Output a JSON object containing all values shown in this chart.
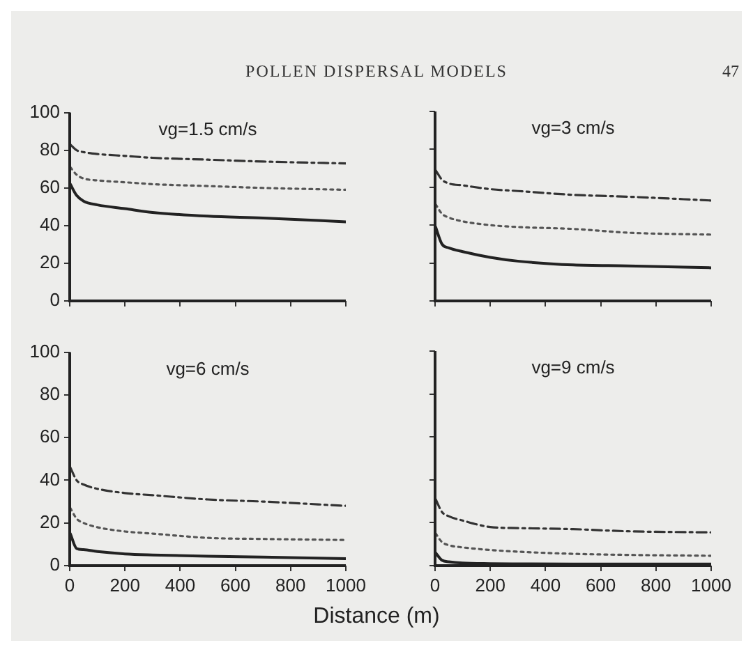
{
  "chart_data": [
    {
      "type": "line",
      "title": "vg=1.5 cm/s",
      "annotations": [
        "POLLEN DISPERSAL MODELS",
        "47"
      ],
      "x": [
        2,
        25,
        50,
        100,
        200,
        300,
        500,
        700,
        1000
      ],
      "xlim": [
        0,
        1000
      ],
      "ylim": [
        0,
        100
      ],
      "xticks": [
        0,
        200,
        400,
        600,
        800,
        1000
      ],
      "yticks": [
        0,
        20,
        40,
        60,
        80,
        100
      ],
      "tick_labels": "y",
      "series": [
        {
          "color": "#333333",
          "line_style": "dashed",
          "values": [
            83,
            80,
            79,
            78,
            77,
            76,
            75,
            74,
            73
          ]
        },
        {
          "color": "#555555",
          "line_style": "dotted",
          "values": [
            71,
            67,
            65,
            64,
            63,
            62,
            61,
            60,
            59
          ]
        },
        {
          "color": "#222222",
          "line_style": "solid",
          "values": [
            62,
            56,
            53,
            51,
            49,
            47,
            45,
            44,
            42
          ]
        }
      ]
    },
    {
      "type": "line",
      "title": "vg=3 cm/s",
      "x": [
        2,
        25,
        50,
        100,
        200,
        300,
        500,
        700,
        1000
      ],
      "xlim": [
        0,
        1000
      ],
      "ylim": [
        0,
        100
      ],
      "xticks": [
        0,
        200,
        400,
        600,
        800,
        1000
      ],
      "yticks": [
        0,
        20,
        40,
        60,
        80,
        100
      ],
      "tick_labels": false,
      "series": [
        {
          "color": "#333333",
          "line_style": "dashed",
          "values": [
            69,
            64,
            62,
            61,
            59,
            58,
            56,
            55,
            53
          ]
        },
        {
          "color": "#555555",
          "line_style": "dotted",
          "values": [
            51,
            46,
            44,
            42,
            40,
            39,
            38,
            36,
            35
          ]
        },
        {
          "color": "#222222",
          "line_style": "solid",
          "values": [
            39,
            30,
            28,
            26,
            23,
            21,
            19,
            18.5,
            17.5
          ]
        }
      ]
    },
    {
      "type": "line",
      "title": "vg=6 cm/s",
      "xlabel": "Distance (m)",
      "x": [
        2,
        25,
        50,
        100,
        200,
        300,
        500,
        700,
        1000
      ],
      "xlim": [
        0,
        1000
      ],
      "ylim": [
        0,
        100
      ],
      "xticks": [
        0,
        200,
        400,
        600,
        800,
        1000
      ],
      "yticks": [
        0,
        20,
        40,
        60,
        80,
        100
      ],
      "series": [
        {
          "color": "#333333",
          "line_style": "dashed",
          "values": [
            46,
            40,
            38,
            36,
            34,
            33,
            31,
            30,
            28
          ]
        },
        {
          "color": "#555555",
          "line_style": "dotted",
          "values": [
            27,
            22,
            20,
            18,
            16,
            15,
            13,
            12.5,
            12
          ]
        },
        {
          "color": "#222222",
          "line_style": "solid",
          "values": [
            15,
            8,
            7.5,
            6.6,
            5.5,
            5,
            4.4,
            4,
            3.3
          ]
        }
      ]
    },
    {
      "type": "line",
      "title": "vg=9 cm/s",
      "x": [
        2,
        25,
        50,
        100,
        200,
        300,
        500,
        700,
        1000
      ],
      "xlim": [
        0,
        1000
      ],
      "ylim": [
        0,
        100
      ],
      "xticks": [
        0,
        200,
        400,
        600,
        800,
        1000
      ],
      "yticks": [
        0,
        20,
        40,
        60,
        80,
        100
      ],
      "tick_labels": "x",
      "series": [
        {
          "color": "#333333",
          "line_style": "dashed",
          "values": [
            31,
            25,
            23,
            21,
            18,
            17.5,
            17,
            16,
            15.5
          ]
        },
        {
          "color": "#555555",
          "line_style": "dotted",
          "values": [
            15,
            11,
            9.5,
            8.5,
            7.3,
            6.5,
            5.5,
            5,
            4.6
          ]
        },
        {
          "color": "#222222",
          "line_style": "solid",
          "values": [
            6,
            2.5,
            1.8,
            1.2,
            0.9,
            0.8,
            0.7,
            0.7,
            0.7
          ]
        }
      ]
    }
  ]
}
